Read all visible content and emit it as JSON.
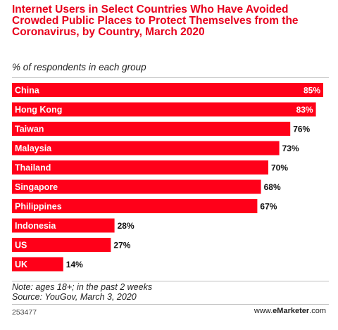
{
  "title": "Internet Users in Select Countries Who Have Avoided Crowded Public Places to Protect Themselves from the Coronavirus, by Country, March 2020",
  "subtitle": "% of respondents in each group",
  "chart_data": {
    "type": "bar",
    "orientation": "horizontal",
    "categories": [
      "China",
      "Hong Kong",
      "Taiwan",
      "Malaysia",
      "Thailand",
      "Singapore",
      "Philippines",
      "Indonesia",
      "US",
      "UK"
    ],
    "values": [
      85,
      83,
      76,
      73,
      70,
      68,
      67,
      28,
      27,
      14
    ],
    "value_labels": [
      "85%",
      "83%",
      "76%",
      "73%",
      "70%",
      "68%",
      "67%",
      "28%",
      "27%",
      "14%"
    ],
    "unit": "%",
    "xlim": [
      0,
      100
    ],
    "bar_color": "#ff0019",
    "grid": false,
    "legend": "none"
  },
  "note_line1": "Note: ages 18+; in the past 2 weeks",
  "note_line2": "Source: YouGov, March 3, 2020",
  "chart_id": "253477",
  "brand": {
    "prefix": "www.",
    "name": "eMarketer",
    "suffix": ".com"
  }
}
